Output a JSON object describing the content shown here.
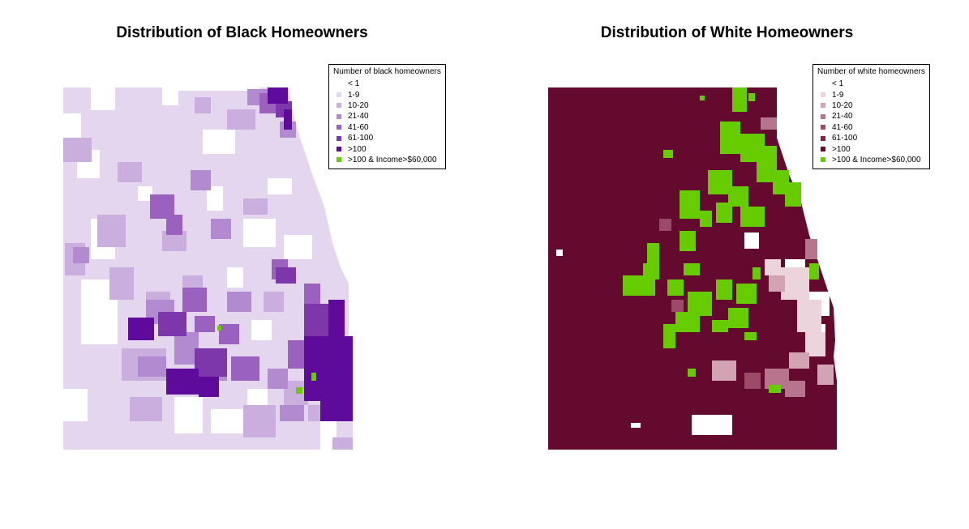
{
  "maps": [
    {
      "title": "Distribution of Black Homeowners",
      "legend": {
        "title": "Number of black homeowners",
        "items": [
          {
            "label": "< 1",
            "color": "#ffffff"
          },
          {
            "label": "1-9",
            "color": "#e3d6ee"
          },
          {
            "label": "10-20",
            "color": "#c9aede"
          },
          {
            "label": "21-40",
            "color": "#b28ad0"
          },
          {
            "label": "41-60",
            "color": "#9a62be"
          },
          {
            "label": "61-100",
            "color": "#7d37ab"
          },
          {
            "label": ">100",
            "color": "#5e0a9a"
          },
          {
            "label": ">100 & Income>$60,000",
            "color": "#66cc00"
          }
        ]
      }
    },
    {
      "title": "Distribution of White Homeowners",
      "legend": {
        "title": "Number of white homeowners",
        "items": [
          {
            "label": "< 1",
            "color": "#ffffff"
          },
          {
            "label": "1-9",
            "color": "#ecd4dc"
          },
          {
            "label": "10-20",
            "color": "#d1a3b3"
          },
          {
            "label": "21-40",
            "color": "#b7758d"
          },
          {
            "label": "41-60",
            "color": "#9c4a68"
          },
          {
            "label": "61-100",
            "color": "#812443"
          },
          {
            "label": ">100",
            "color": "#640a2e"
          },
          {
            "label": ">100 & Income>$60,000",
            "color": "#66cc00"
          }
        ]
      }
    }
  ]
}
